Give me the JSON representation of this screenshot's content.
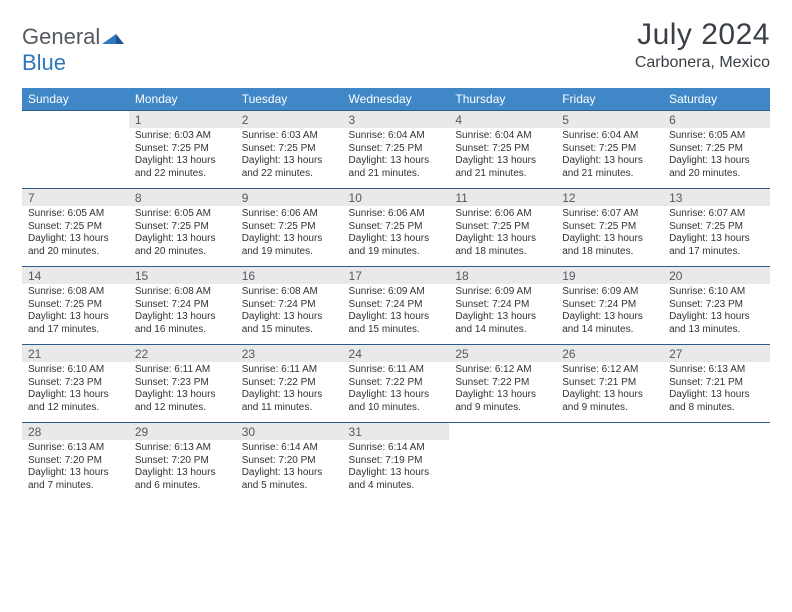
{
  "logo": {
    "word1": "General",
    "word2": "Blue"
  },
  "title": "July 2024",
  "subtitle": "Carbonera, Mexico",
  "colors": {
    "header_bg": "#3f87c7",
    "header_fg": "#ffffff",
    "daynum_bg": "#e9e9e9",
    "rule": "#2e5b88",
    "text": "#333333",
    "logo_gray": "#555a62",
    "logo_blue": "#2e77b8"
  },
  "weekdays": [
    "Sunday",
    "Monday",
    "Tuesday",
    "Wednesday",
    "Thursday",
    "Friday",
    "Saturday"
  ],
  "weeks": [
    [
      {
        "n": "",
        "sr": "",
        "ss": "",
        "dl": ""
      },
      {
        "n": "1",
        "sr": "6:03 AM",
        "ss": "7:25 PM",
        "dl": "13 hours and 22 minutes."
      },
      {
        "n": "2",
        "sr": "6:03 AM",
        "ss": "7:25 PM",
        "dl": "13 hours and 22 minutes."
      },
      {
        "n": "3",
        "sr": "6:04 AM",
        "ss": "7:25 PM",
        "dl": "13 hours and 21 minutes."
      },
      {
        "n": "4",
        "sr": "6:04 AM",
        "ss": "7:25 PM",
        "dl": "13 hours and 21 minutes."
      },
      {
        "n": "5",
        "sr": "6:04 AM",
        "ss": "7:25 PM",
        "dl": "13 hours and 21 minutes."
      },
      {
        "n": "6",
        "sr": "6:05 AM",
        "ss": "7:25 PM",
        "dl": "13 hours and 20 minutes."
      }
    ],
    [
      {
        "n": "7",
        "sr": "6:05 AM",
        "ss": "7:25 PM",
        "dl": "13 hours and 20 minutes."
      },
      {
        "n": "8",
        "sr": "6:05 AM",
        "ss": "7:25 PM",
        "dl": "13 hours and 20 minutes."
      },
      {
        "n": "9",
        "sr": "6:06 AM",
        "ss": "7:25 PM",
        "dl": "13 hours and 19 minutes."
      },
      {
        "n": "10",
        "sr": "6:06 AM",
        "ss": "7:25 PM",
        "dl": "13 hours and 19 minutes."
      },
      {
        "n": "11",
        "sr": "6:06 AM",
        "ss": "7:25 PM",
        "dl": "13 hours and 18 minutes."
      },
      {
        "n": "12",
        "sr": "6:07 AM",
        "ss": "7:25 PM",
        "dl": "13 hours and 18 minutes."
      },
      {
        "n": "13",
        "sr": "6:07 AM",
        "ss": "7:25 PM",
        "dl": "13 hours and 17 minutes."
      }
    ],
    [
      {
        "n": "14",
        "sr": "6:08 AM",
        "ss": "7:25 PM",
        "dl": "13 hours and 17 minutes."
      },
      {
        "n": "15",
        "sr": "6:08 AM",
        "ss": "7:24 PM",
        "dl": "13 hours and 16 minutes."
      },
      {
        "n": "16",
        "sr": "6:08 AM",
        "ss": "7:24 PM",
        "dl": "13 hours and 15 minutes."
      },
      {
        "n": "17",
        "sr": "6:09 AM",
        "ss": "7:24 PM",
        "dl": "13 hours and 15 minutes."
      },
      {
        "n": "18",
        "sr": "6:09 AM",
        "ss": "7:24 PM",
        "dl": "13 hours and 14 minutes."
      },
      {
        "n": "19",
        "sr": "6:09 AM",
        "ss": "7:24 PM",
        "dl": "13 hours and 14 minutes."
      },
      {
        "n": "20",
        "sr": "6:10 AM",
        "ss": "7:23 PM",
        "dl": "13 hours and 13 minutes."
      }
    ],
    [
      {
        "n": "21",
        "sr": "6:10 AM",
        "ss": "7:23 PM",
        "dl": "13 hours and 12 minutes."
      },
      {
        "n": "22",
        "sr": "6:11 AM",
        "ss": "7:23 PM",
        "dl": "13 hours and 12 minutes."
      },
      {
        "n": "23",
        "sr": "6:11 AM",
        "ss": "7:22 PM",
        "dl": "13 hours and 11 minutes."
      },
      {
        "n": "24",
        "sr": "6:11 AM",
        "ss": "7:22 PM",
        "dl": "13 hours and 10 minutes."
      },
      {
        "n": "25",
        "sr": "6:12 AM",
        "ss": "7:22 PM",
        "dl": "13 hours and 9 minutes."
      },
      {
        "n": "26",
        "sr": "6:12 AM",
        "ss": "7:21 PM",
        "dl": "13 hours and 9 minutes."
      },
      {
        "n": "27",
        "sr": "6:13 AM",
        "ss": "7:21 PM",
        "dl": "13 hours and 8 minutes."
      }
    ],
    [
      {
        "n": "28",
        "sr": "6:13 AM",
        "ss": "7:20 PM",
        "dl": "13 hours and 7 minutes."
      },
      {
        "n": "29",
        "sr": "6:13 AM",
        "ss": "7:20 PM",
        "dl": "13 hours and 6 minutes."
      },
      {
        "n": "30",
        "sr": "6:14 AM",
        "ss": "7:20 PM",
        "dl": "13 hours and 5 minutes."
      },
      {
        "n": "31",
        "sr": "6:14 AM",
        "ss": "7:19 PM",
        "dl": "13 hours and 4 minutes."
      },
      {
        "n": "",
        "sr": "",
        "ss": "",
        "dl": ""
      },
      {
        "n": "",
        "sr": "",
        "ss": "",
        "dl": ""
      },
      {
        "n": "",
        "sr": "",
        "ss": "",
        "dl": ""
      }
    ]
  ],
  "labels": {
    "sunrise": "Sunrise: ",
    "sunset": "Sunset: ",
    "daylight": "Daylight: "
  }
}
